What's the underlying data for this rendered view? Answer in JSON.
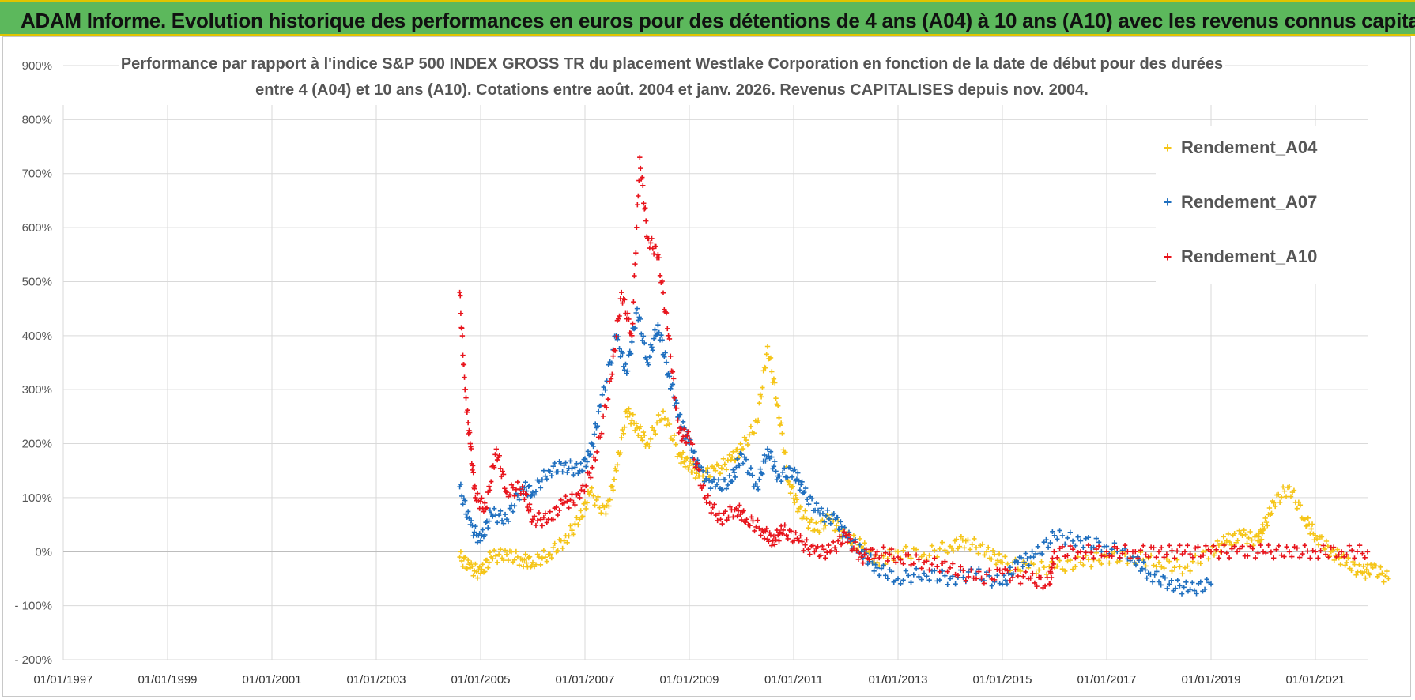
{
  "header": {
    "title": "ADAM Informe. Evolution historique des performances en euros pour des détentions de 4 ans (A04) à 10 ans (A10) avec les revenus connus capitalisés"
  },
  "colors": {
    "banner": "#5cb85c",
    "banner_border": "#e0c400",
    "A04": "#f5c518",
    "A07": "#1f6fbf",
    "A10": "#e8141c",
    "grid": "#d9d9d9"
  },
  "chart_data": {
    "type": "scatter",
    "title_line1": "Performance par rapport à l'indice S&P 500 INDEX GROSS TR  du placement Westlake Corporation en fonction de la date de début pour des durées",
    "title_line2": "entre 4 (A04) et 10 ans (A10).  Cotations entre août. 2004 et janv. 2026. Revenus CAPITALISES depuis nov. 2004.",
    "xlabel": "",
    "ylabel": "",
    "xlim": [
      1997.0,
      2022.0
    ],
    "ylim": [
      -200,
      900
    ],
    "y_ticks": [
      -200,
      -100,
      0,
      100,
      200,
      300,
      400,
      500,
      600,
      700,
      800,
      900
    ],
    "y_tick_labels": [
      "- 200%",
      "- 100%",
      "0%",
      "100%",
      "200%",
      "300%",
      "400%",
      "500%",
      "600%",
      "700%",
      "800%",
      "900%"
    ],
    "x_ticks": [
      1997,
      1999,
      2001,
      2003,
      2005,
      2007,
      2009,
      2011,
      2013,
      2015,
      2017,
      2019,
      2021
    ],
    "x_tick_labels": [
      "01/01/1997",
      "01/01/1999",
      "01/01/2001",
      "01/01/2003",
      "01/01/2005",
      "01/01/2007",
      "01/01/2009",
      "01/01/2011",
      "01/01/2013",
      "01/01/2015",
      "01/01/2017",
      "01/01/2019",
      "01/01/2021"
    ],
    "grid": true,
    "legend_position": "top-right",
    "series": [
      {
        "name": "Rendement_A04",
        "color": "#f5c518",
        "marker": "+",
        "x": [
          2004.6,
          2004.8,
          2005.0,
          2005.2,
          2005.5,
          2005.8,
          2006.0,
          2006.3,
          2006.6,
          2006.9,
          2007.1,
          2007.4,
          2007.6,
          2007.8,
          2008.0,
          2008.2,
          2008.5,
          2008.8,
          2009.0,
          2009.2,
          2009.5,
          2009.8,
          2010.0,
          2010.3,
          2010.5,
          2010.7,
          2010.9,
          2011.1,
          2011.4,
          2011.7,
          2012.0,
          2012.3,
          2012.6,
          2013.0,
          2013.5,
          2014.0,
          2014.3,
          2014.7,
          2015.0,
          2015.5,
          2016.0,
          2016.5,
          2017.0,
          2017.5,
          2018.0,
          2018.5,
          2019.0,
          2019.3,
          2019.6,
          2019.9,
          2020.0,
          2020.2,
          2020.5,
          2020.8,
          2021.0,
          2021.3,
          2021.6,
          2021.9,
          2022.1,
          2022.4
        ],
        "y": [
          -10,
          -30,
          -40,
          -10,
          -5,
          -15,
          -20,
          -5,
          20,
          60,
          110,
          70,
          150,
          260,
          230,
          200,
          260,
          180,
          160,
          140,
          150,
          170,
          190,
          240,
          380,
          270,
          130,
          80,
          40,
          60,
          30,
          10,
          -20,
          0,
          -5,
          10,
          20,
          0,
          -20,
          -30,
          -30,
          -20,
          -10,
          -10,
          -20,
          -30,
          0,
          20,
          30,
          20,
          40,
          90,
          120,
          60,
          30,
          0,
          -20,
          -40,
          -30,
          -50
        ]
      },
      {
        "name": "Rendement_A07",
        "color": "#1f6fbf",
        "marker": "+",
        "x": [
          2004.6,
          2004.8,
          2005.0,
          2005.2,
          2005.5,
          2005.8,
          2006.0,
          2006.3,
          2006.6,
          2006.9,
          2007.1,
          2007.3,
          2007.6,
          2007.8,
          2008.0,
          2008.2,
          2008.4,
          2008.6,
          2008.8,
          2009.0,
          2009.2,
          2009.5,
          2009.8,
          2010.0,
          2010.3,
          2010.5,
          2010.7,
          2011.0,
          2011.2,
          2011.5,
          2011.8,
          2012.0,
          2012.3,
          2012.6,
          2013.0,
          2013.5,
          2014.0,
          2014.5,
          2015.0,
          2015.3,
          2015.6,
          2016.0,
          2016.5,
          2017.0,
          2017.5,
          2017.8,
          2018.2,
          2018.6,
          2019.0
        ],
        "y": [
          120,
          50,
          20,
          70,
          60,
          120,
          110,
          150,
          160,
          150,
          180,
          270,
          400,
          330,
          450,
          350,
          420,
          330,
          250,
          200,
          150,
          120,
          130,
          180,
          120,
          190,
          140,
          150,
          110,
          70,
          60,
          30,
          0,
          -30,
          -50,
          -40,
          -50,
          -40,
          -60,
          -20,
          -10,
          30,
          20,
          10,
          -10,
          -40,
          -60,
          -70,
          -60
        ]
      },
      {
        "name": "Rendement_A10",
        "color": "#e8141c",
        "marker": "+",
        "x": [
          2004.6,
          2004.7,
          2004.8,
          2004.9,
          2005.1,
          2005.3,
          2005.5,
          2005.8,
          2006.0,
          2006.3,
          2006.6,
          2006.9,
          2007.2,
          2007.5,
          2007.7,
          2007.9,
          2008.05,
          2008.2,
          2008.4,
          2008.6,
          2008.8,
          2009.0,
          2009.3,
          2009.6,
          2009.9,
          2010.1,
          2010.4,
          2010.6,
          2010.8,
          2011.1,
          2011.4,
          2011.7,
          2012.0,
          2012.3,
          2012.6,
          2013.0,
          2013.5,
          2014.0,
          2014.5,
          2015.0,
          2015.5,
          2015.9,
          2016.0,
          2016.5,
          2017.0,
          2017.5,
          2018.0,
          2018.5,
          2019.0,
          2019.5,
          2020.0,
          2020.5,
          2021.0,
          2021.5,
          2022.0
        ],
        "y": [
          480,
          300,
          200,
          100,
          80,
          190,
          110,
          120,
          60,
          60,
          90,
          100,
          170,
          320,
          480,
          400,
          730,
          580,
          550,
          400,
          220,
          210,
          100,
          60,
          80,
          60,
          40,
          20,
          40,
          20,
          0,
          0,
          30,
          -10,
          0,
          -10,
          -20,
          -30,
          -50,
          -40,
          -50,
          -60,
          0,
          0,
          0,
          0,
          0,
          0,
          0,
          0,
          0,
          0,
          0,
          0,
          0
        ]
      }
    ]
  }
}
